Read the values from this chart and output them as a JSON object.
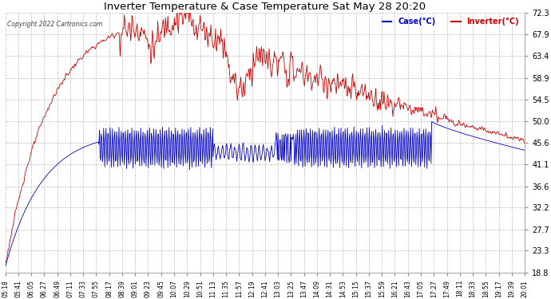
{
  "title": "Inverter Temperature & Case Temperature Sat May 28 20:20",
  "copyright": "Copyright 2022 Cartronics.com",
  "legend_case": "Case(°C)",
  "legend_inverter": "Inverter(°C)",
  "yticks": [
    18.8,
    23.3,
    27.7,
    32.2,
    36.6,
    41.1,
    45.6,
    50.0,
    54.5,
    58.9,
    63.4,
    67.9,
    72.3
  ],
  "ymin": 18.8,
  "ymax": 72.3,
  "xtick_labels": [
    "05:18",
    "05:41",
    "06:05",
    "06:27",
    "06:49",
    "07:11",
    "07:33",
    "07:55",
    "08:17",
    "08:39",
    "09:01",
    "09:23",
    "09:45",
    "10:07",
    "10:29",
    "10:51",
    "11:13",
    "11:35",
    "11:57",
    "12:19",
    "12:41",
    "13:03",
    "13:25",
    "13:47",
    "14:09",
    "14:31",
    "14:53",
    "15:15",
    "15:37",
    "15:59",
    "16:21",
    "16:43",
    "17:05",
    "17:27",
    "17:49",
    "18:11",
    "18:33",
    "18:55",
    "19:17",
    "19:39",
    "20:01"
  ],
  "bg_color": "#ffffff",
  "plot_bg_color": "#ffffff",
  "grid_color": "#bbbbbb",
  "case_color": "#0000cc",
  "inverter_color": "#cc0000",
  "title_color": "#000000",
  "legend_case_color": "#0000cc",
  "legend_inverter_color": "#cc0000"
}
